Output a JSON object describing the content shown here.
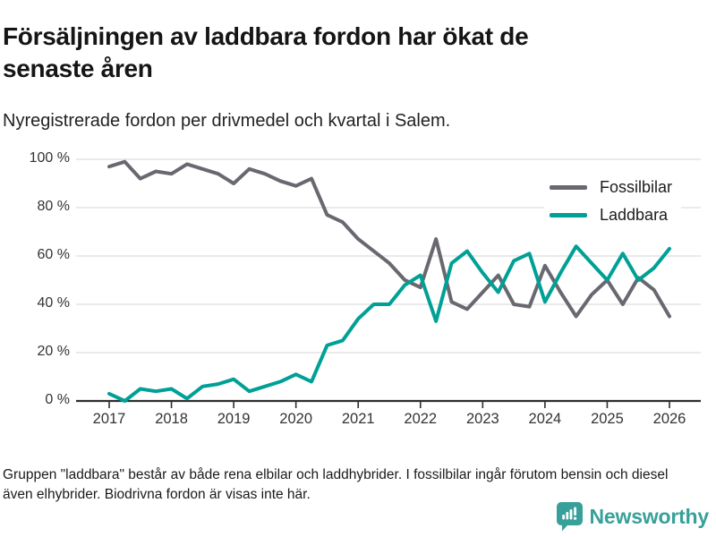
{
  "header": {
    "title": "Försäljningen av laddbara fordon har ökat de senaste åren",
    "subtitle": "Nyregistrerade fordon per drivmedel och kvartal i Salem."
  },
  "footer": {
    "note": "Gruppen \"laddbara\" består av både rena elbilar och laddhybrider. I fossilbilar ingår förutom bensin och diesel även elhybrider. Biodrivna fordon är visas inte här."
  },
  "branding": {
    "name": "Newsworthy",
    "logo_icon": "bar-chart-speech-bubble-icon",
    "color": "#38a09a"
  },
  "colors": {
    "grid": "#e4e4e4",
    "axis": "#2e2e2e",
    "tick_text": "#333333"
  },
  "chart_data": {
    "type": "line",
    "title": "Försäljningen av laddbara fordon har ökat de senaste åren",
    "subtitle": "Nyregistrerade fordon per drivmedel och kvartal i Salem.",
    "unit": "%",
    "ylim": [
      0,
      100
    ],
    "y_ticks": [
      0,
      20,
      40,
      60,
      80,
      100
    ],
    "y_tick_labels": [
      "0 %",
      "20 %",
      "40 %",
      "60 %",
      "80 %",
      "100 %"
    ],
    "x_tick_labels": [
      "2017",
      "2018",
      "2019",
      "2020",
      "2021",
      "2022",
      "2023",
      "2024",
      "2025",
      "2026"
    ],
    "grid": "horizontal",
    "legend_position": "inside-top-right",
    "categories": [
      "2017 Q1",
      "2017 Q2",
      "2017 Q3",
      "2017 Q4",
      "2018 Q1",
      "2018 Q2",
      "2018 Q3",
      "2018 Q4",
      "2019 Q1",
      "2019 Q2",
      "2019 Q3",
      "2019 Q4",
      "2020 Q1",
      "2020 Q2",
      "2020 Q3",
      "2020 Q4",
      "2021 Q1",
      "2021 Q2",
      "2021 Q3",
      "2021 Q4",
      "2022 Q1",
      "2022 Q2",
      "2022 Q3",
      "2022 Q4",
      "2023 Q1",
      "2023 Q2",
      "2023 Q3",
      "2023 Q4",
      "2024 Q1",
      "2024 Q2",
      "2024 Q3",
      "2024 Q4",
      "2025 Q1",
      "2025 Q2",
      "2025 Q3",
      "2025 Q4",
      "2026 Q1"
    ],
    "series": [
      {
        "name": "Fossilbilar",
        "color": "#686870",
        "values": [
          97,
          99,
          92,
          95,
          94,
          98,
          96,
          94,
          90,
          96,
          94,
          91,
          89,
          92,
          77,
          74,
          67,
          62,
          57,
          50,
          47,
          67,
          41,
          38,
          45,
          52,
          40,
          39,
          56,
          45,
          35,
          44,
          50,
          40,
          51,
          46,
          35
        ]
      },
      {
        "name": "Laddbara",
        "color": "#00a096",
        "values": [
          3,
          0,
          5,
          4,
          5,
          1,
          6,
          7,
          9,
          4,
          6,
          8,
          11,
          8,
          23,
          25,
          34,
          40,
          40,
          48,
          52,
          33,
          57,
          62,
          53,
          45,
          58,
          61,
          41,
          53,
          64,
          57,
          50,
          61,
          50,
          55,
          63
        ]
      }
    ]
  }
}
